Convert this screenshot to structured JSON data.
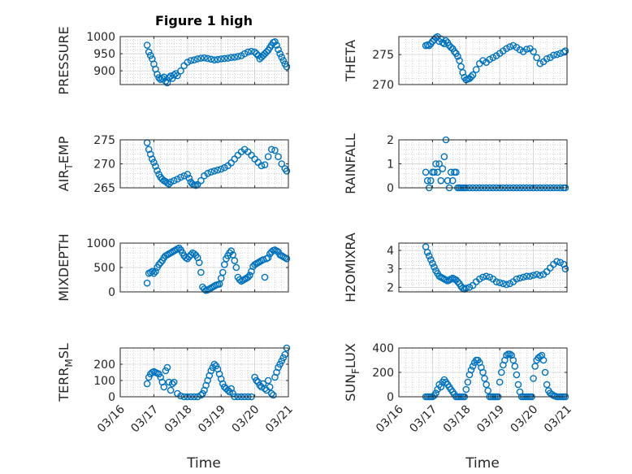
{
  "figure": {
    "title": "Figure 1 high",
    "xlabel": "Time"
  },
  "colors": {
    "marker": "#0072BD",
    "axis": "#262626",
    "grid": "#b5b5b5"
  },
  "chart_data": [
    {
      "type": "scatter",
      "ylabel": "PRESSURE",
      "ylabel_sub": "",
      "ylabel_after": "",
      "ylim": [
        860,
        1000
      ],
      "yticks": [
        900,
        950,
        1000
      ],
      "x": [
        0.8,
        0.85,
        0.9,
        0.95,
        1.0,
        1.05,
        1.1,
        1.15,
        1.2,
        1.25,
        1.3,
        1.35,
        1.4,
        1.45,
        1.5,
        1.55,
        1.6,
        1.65,
        1.7,
        1.8,
        1.9,
        2.0,
        2.1,
        2.2,
        2.3,
        2.4,
        2.5,
        2.6,
        2.7,
        2.8,
        2.9,
        3.0,
        3.1,
        3.2,
        3.3,
        3.4,
        3.5,
        3.6,
        3.7,
        3.8,
        3.9,
        4.0,
        4.05,
        4.1,
        4.15,
        4.2,
        4.25,
        4.3,
        4.35,
        4.4,
        4.45,
        4.5,
        4.55,
        4.6,
        4.65,
        4.7,
        4.75,
        4.8,
        4.85,
        4.9,
        4.95
      ],
      "y": [
        975,
        955,
        945,
        935,
        920,
        905,
        890,
        880,
        875,
        878,
        882,
        870,
        865,
        880,
        885,
        878,
        888,
        892,
        886,
        900,
        915,
        925,
        930,
        932,
        935,
        937,
        938,
        936,
        934,
        932,
        933,
        935,
        936,
        937,
        939,
        940,
        942,
        944,
        950,
        955,
        957,
        955,
        950,
        945,
        935,
        940,
        945,
        950,
        955,
        960,
        968,
        975,
        983,
        985,
        975,
        962,
        950,
        940,
        930,
        920,
        912
      ]
    },
    {
      "type": "scatter",
      "ylabel": "THETA",
      "ylabel_sub": "",
      "ylabel_after": "",
      "ylim": [
        270,
        278
      ],
      "yticks": [
        270,
        275
      ],
      "x": [
        0.8,
        0.85,
        0.9,
        0.95,
        1.0,
        1.05,
        1.1,
        1.15,
        1.2,
        1.25,
        1.3,
        1.35,
        1.4,
        1.45,
        1.5,
        1.55,
        1.6,
        1.65,
        1.7,
        1.75,
        1.8,
        1.85,
        1.9,
        1.95,
        2.0,
        2.05,
        2.1,
        2.15,
        2.2,
        2.3,
        2.4,
        2.5,
        2.6,
        2.7,
        2.8,
        2.9,
        3.0,
        3.1,
        3.2,
        3.3,
        3.4,
        3.5,
        3.6,
        3.7,
        3.8,
        3.9,
        4.0,
        4.1,
        4.2,
        4.3,
        4.4,
        4.5,
        4.6,
        4.7,
        4.8,
        4.9,
        4.95
      ],
      "y": [
        276.5,
        276.6,
        276.5,
        276.8,
        277.2,
        277.5,
        277.8,
        278.0,
        277.2,
        277.6,
        277.0,
        276.8,
        277.3,
        277.0,
        276.5,
        276.2,
        276.0,
        275.5,
        275.2,
        274.7,
        274.0,
        273.0,
        272.0,
        271.2,
        270.8,
        270.9,
        271.0,
        271.3,
        271.6,
        272.5,
        273.5,
        274.0,
        273.7,
        274.2,
        274.5,
        274.8,
        275.2,
        275.6,
        276.0,
        276.3,
        276.5,
        276.2,
        275.8,
        275.5,
        275.9,
        276.0,
        275.5,
        274.5,
        273.5,
        273.8,
        274.3,
        274.5,
        274.9,
        275.0,
        275.2,
        275.4,
        275.6
      ]
    },
    {
      "type": "scatter",
      "ylabel": "AIR",
      "ylabel_sub": "T",
      "ylabel_after": "EMP",
      "ylim": [
        265,
        275
      ],
      "yticks": [
        265,
        270,
        275
      ],
      "x": [
        0.8,
        0.85,
        0.9,
        0.95,
        1.0,
        1.05,
        1.1,
        1.15,
        1.2,
        1.25,
        1.3,
        1.35,
        1.4,
        1.45,
        1.5,
        1.6,
        1.7,
        1.8,
        1.9,
        2.0,
        2.05,
        2.1,
        2.15,
        2.2,
        2.25,
        2.3,
        2.4,
        2.5,
        2.6,
        2.7,
        2.8,
        2.9,
        3.0,
        3.1,
        3.2,
        3.3,
        3.4,
        3.5,
        3.6,
        3.7,
        3.8,
        3.9,
        4.0,
        4.1,
        4.2,
        4.3,
        4.4,
        4.5,
        4.6,
        4.7,
        4.8,
        4.9,
        4.95
      ],
      "y": [
        274.4,
        273.0,
        272.0,
        271.0,
        270.3,
        269.5,
        268.6,
        267.8,
        267.2,
        266.8,
        266.5,
        266.3,
        266.0,
        265.8,
        266.2,
        266.5,
        266.8,
        267.2,
        267.5,
        267.8,
        267.0,
        266.2,
        265.8,
        265.6,
        265.5,
        265.7,
        266.5,
        267.5,
        268.0,
        268.3,
        268.5,
        268.7,
        268.9,
        269.2,
        269.6,
        270.2,
        271.0,
        271.8,
        272.5,
        273.0,
        272.5,
        271.8,
        271.0,
        270.3,
        269.6,
        269.8,
        271.5,
        273.0,
        272.8,
        271.5,
        270.0,
        269.0,
        268.5
      ]
    },
    {
      "type": "scatter",
      "ylabel": "RAINFALL",
      "ylabel_sub": "",
      "ylabel_after": "",
      "ylim": [
        0,
        2
      ],
      "yticks": [
        0,
        1,
        2
      ],
      "x": [
        0.8,
        0.85,
        0.9,
        0.95,
        1.0,
        1.05,
        1.1,
        1.15,
        1.2,
        1.25,
        1.3,
        1.35,
        1.4,
        1.45,
        1.5,
        1.55,
        1.6,
        1.65,
        1.7,
        1.75,
        1.8,
        1.85,
        1.9,
        1.95,
        2.0,
        2.1,
        2.2,
        2.3,
        2.4,
        2.5,
        2.6,
        2.7,
        2.8,
        2.9,
        3.0,
        3.1,
        3.2,
        3.3,
        3.4,
        3.5,
        3.6,
        3.7,
        3.8,
        3.9,
        4.0,
        4.1,
        4.2,
        4.3,
        4.4,
        4.5,
        4.6,
        4.7,
        4.8,
        4.9,
        4.95
      ],
      "y": [
        0.65,
        0.3,
        0.0,
        0.3,
        0.65,
        0.65,
        1.0,
        0.65,
        1.0,
        0.3,
        0.8,
        1.3,
        2.0,
        0.3,
        0.0,
        0.65,
        0.3,
        0.65,
        0.65,
        0,
        0,
        0,
        0,
        0,
        0,
        0,
        0,
        0,
        0,
        0,
        0,
        0,
        0,
        0,
        0,
        0,
        0,
        0,
        0,
        0,
        0,
        0,
        0,
        0,
        0,
        0,
        0,
        0,
        0,
        0,
        0,
        0,
        0,
        0,
        0
      ]
    },
    {
      "type": "scatter",
      "ylabel": "MIXDEPTH",
      "ylabel_sub": "",
      "ylabel_after": "",
      "ylim": [
        0,
        1000
      ],
      "yticks": [
        0,
        500,
        1000
      ],
      "x": [
        0.8,
        0.85,
        0.9,
        0.95,
        1.0,
        1.05,
        1.1,
        1.15,
        1.2,
        1.25,
        1.3,
        1.35,
        1.4,
        1.45,
        1.5,
        1.55,
        1.6,
        1.65,
        1.7,
        1.75,
        1.8,
        1.85,
        1.9,
        1.95,
        2.0,
        2.05,
        2.1,
        2.15,
        2.2,
        2.25,
        2.3,
        2.35,
        2.4,
        2.45,
        2.5,
        2.55,
        2.6,
        2.65,
        2.7,
        2.75,
        2.8,
        2.85,
        2.9,
        2.95,
        3.0,
        3.05,
        3.1,
        3.15,
        3.2,
        3.25,
        3.3,
        3.35,
        3.4,
        3.45,
        3.5,
        3.55,
        3.6,
        3.65,
        3.7,
        3.75,
        3.8,
        3.85,
        3.9,
        3.95,
        4.0,
        4.05,
        4.1,
        4.15,
        4.2,
        4.25,
        4.3,
        4.35,
        4.4,
        4.45,
        4.5,
        4.55,
        4.6,
        4.65,
        4.7,
        4.75,
        4.8,
        4.85,
        4.9,
        4.95
      ],
      "y": [
        180,
        380,
        400,
        420,
        380,
        420,
        500,
        560,
        600,
        640,
        700,
        740,
        760,
        780,
        800,
        820,
        840,
        860,
        880,
        900,
        860,
        800,
        740,
        700,
        680,
        720,
        760,
        800,
        780,
        750,
        700,
        600,
        400,
        100,
        60,
        30,
        40,
        60,
        80,
        100,
        120,
        140,
        150,
        160,
        280,
        400,
        560,
        680,
        740,
        800,
        840,
        760,
        640,
        500,
        300,
        250,
        220,
        240,
        260,
        280,
        300,
        340,
        420,
        520,
        560,
        580,
        600,
        620,
        640,
        660,
        300,
        680,
        700,
        780,
        820,
        850,
        860,
        840,
        820,
        760,
        740,
        720,
        700,
        680
      ]
    },
    {
      "type": "scatter",
      "ylabel": "H2OMIXRA",
      "ylabel_sub": "",
      "ylabel_after": "",
      "ylim": [
        1.75,
        4.4
      ],
      "yticks": [
        2,
        3,
        4
      ],
      "x": [
        0.8,
        0.85,
        0.9,
        0.95,
        1.0,
        1.05,
        1.1,
        1.15,
        1.2,
        1.25,
        1.3,
        1.35,
        1.4,
        1.45,
        1.5,
        1.55,
        1.6,
        1.65,
        1.7,
        1.75,
        1.8,
        1.85,
        1.9,
        1.95,
        2.0,
        2.1,
        2.2,
        2.3,
        2.4,
        2.5,
        2.6,
        2.7,
        2.8,
        2.9,
        3.0,
        3.1,
        3.2,
        3.3,
        3.4,
        3.5,
        3.6,
        3.7,
        3.8,
        3.9,
        4.0,
        4.1,
        4.2,
        4.3,
        4.4,
        4.5,
        4.6,
        4.7,
        4.8,
        4.9,
        4.95
      ],
      "y": [
        4.2,
        3.9,
        3.7,
        3.5,
        3.3,
        3.1,
        2.9,
        2.75,
        2.6,
        2.55,
        2.5,
        2.45,
        2.4,
        2.35,
        2.4,
        2.45,
        2.5,
        2.45,
        2.4,
        2.3,
        2.2,
        2.05,
        1.95,
        1.9,
        1.95,
        2.0,
        2.1,
        2.3,
        2.45,
        2.55,
        2.6,
        2.55,
        2.45,
        2.3,
        2.25,
        2.2,
        2.15,
        2.2,
        2.3,
        2.45,
        2.5,
        2.55,
        2.6,
        2.6,
        2.65,
        2.7,
        2.65,
        2.7,
        2.85,
        3.05,
        3.25,
        3.4,
        3.35,
        3.25,
        3.0
      ]
    },
    {
      "type": "scatter",
      "ylabel": "TERR",
      "ylabel_sub": "M",
      "ylabel_after": "SL",
      "ylim": [
        0,
        300
      ],
      "yticks": [
        0,
        100,
        200
      ],
      "x": [
        0.8,
        0.85,
        0.9,
        0.95,
        1.0,
        1.05,
        1.1,
        1.15,
        1.2,
        1.25,
        1.3,
        1.35,
        1.4,
        1.45,
        1.5,
        1.55,
        1.6,
        1.7,
        1.8,
        1.9,
        2.0,
        2.1,
        2.2,
        2.3,
        2.4,
        2.45,
        2.5,
        2.55,
        2.6,
        2.65,
        2.7,
        2.75,
        2.8,
        2.85,
        2.9,
        2.95,
        3.0,
        3.05,
        3.1,
        3.15,
        3.2,
        3.25,
        3.3,
        3.35,
        3.4,
        3.5,
        3.6,
        3.7,
        3.8,
        3.9,
        4.0,
        4.05,
        4.1,
        4.15,
        4.2,
        4.25,
        4.3,
        4.35,
        4.4,
        4.45,
        4.5,
        4.55,
        4.6,
        4.65,
        4.7,
        4.75,
        4.8,
        4.85,
        4.9,
        4.95
      ],
      "y": [
        80,
        120,
        140,
        150,
        155,
        150,
        145,
        140,
        120,
        90,
        60,
        160,
        180,
        90,
        40,
        80,
        90,
        20,
        5,
        0,
        0,
        0,
        0,
        0,
        10,
        20,
        40,
        70,
        100,
        130,
        160,
        180,
        200,
        190,
        170,
        140,
        110,
        80,
        60,
        50,
        40,
        30,
        50,
        20,
        0,
        0,
        0,
        0,
        0,
        0,
        120,
        100,
        90,
        70,
        60,
        80,
        50,
        40,
        100,
        60,
        20,
        10,
        120,
        150,
        180,
        200,
        220,
        240,
        260,
        300
      ]
    },
    {
      "type": "scatter",
      "ylabel": "SUN",
      "ylabel_sub": "F",
      "ylabel_after": "LUX",
      "ylim": [
        0,
        400
      ],
      "yticks": [
        0,
        200,
        400
      ],
      "x": [
        0.8,
        0.85,
        0.9,
        0.95,
        1.0,
        1.05,
        1.1,
        1.15,
        1.2,
        1.25,
        1.3,
        1.35,
        1.4,
        1.45,
        1.5,
        1.55,
        1.6,
        1.65,
        1.7,
        1.75,
        1.8,
        1.85,
        1.9,
        1.95,
        2.0,
        2.05,
        2.1,
        2.15,
        2.2,
        2.25,
        2.3,
        2.35,
        2.4,
        2.45,
        2.5,
        2.55,
        2.6,
        2.65,
        2.7,
        2.75,
        2.8,
        2.85,
        2.9,
        2.95,
        3.0,
        3.05,
        3.1,
        3.15,
        3.2,
        3.25,
        3.3,
        3.35,
        3.4,
        3.45,
        3.5,
        3.55,
        3.6,
        3.65,
        3.7,
        3.75,
        3.8,
        3.85,
        3.9,
        3.95,
        4.0,
        4.05,
        4.1,
        4.15,
        4.2,
        4.25,
        4.3,
        4.35,
        4.4,
        4.45,
        4.5,
        4.55,
        4.6,
        4.65,
        4.7,
        4.75,
        4.8,
        4.85,
        4.9,
        4.95
      ],
      "y": [
        0,
        0,
        0,
        0,
        0,
        10,
        30,
        60,
        100,
        80,
        120,
        140,
        120,
        100,
        80,
        60,
        40,
        20,
        0,
        0,
        0,
        0,
        0,
        0,
        60,
        120,
        180,
        220,
        250,
        280,
        300,
        300,
        280,
        240,
        200,
        150,
        100,
        50,
        0,
        0,
        0,
        0,
        0,
        0,
        120,
        200,
        260,
        300,
        340,
        350,
        350,
        340,
        300,
        250,
        180,
        100,
        40,
        0,
        0,
        0,
        0,
        0,
        0,
        0,
        150,
        250,
        300,
        320,
        330,
        340,
        300,
        200,
        100,
        50,
        30,
        20,
        10,
        5,
        0,
        0,
        0,
        0,
        0,
        0
      ]
    }
  ],
  "x_axis": {
    "range": [
      0,
      5
    ],
    "ticks": [
      0,
      1,
      2,
      3,
      4,
      5
    ],
    "tick_labels": [
      "03/16",
      "03/17",
      "03/18",
      "03/19",
      "03/20",
      "03/21"
    ]
  }
}
